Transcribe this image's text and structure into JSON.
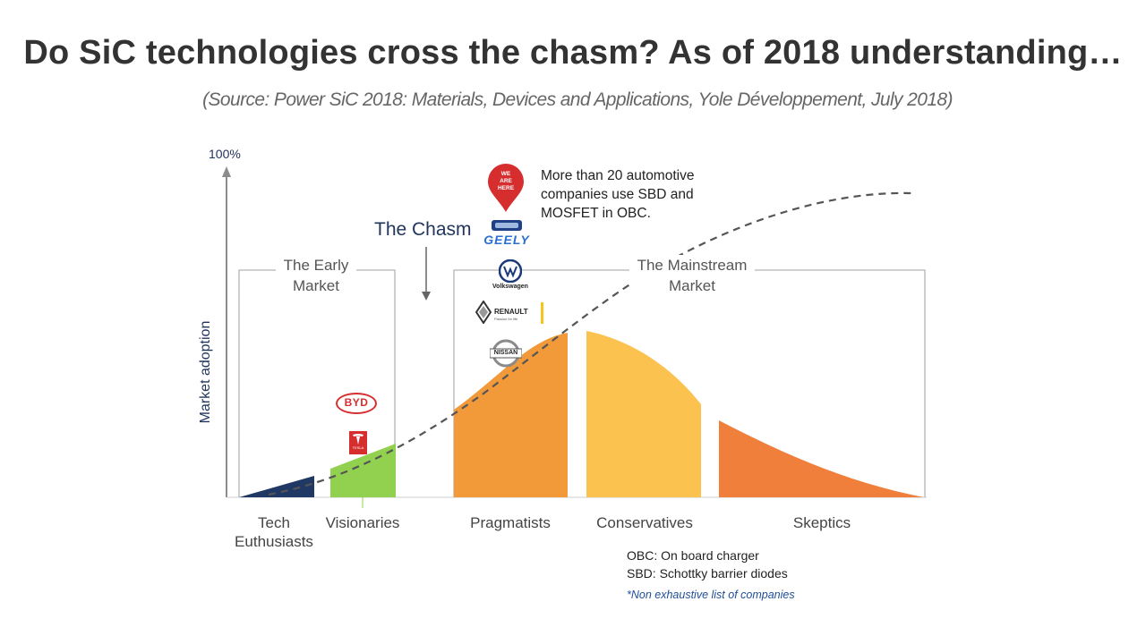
{
  "slide": {
    "title": "Do SiC technologies cross the chasm? As of 2018 understanding…",
    "subtitle": "(Source: Power SiC 2018: Materials, Devices and Applications, Yole Développement, July 2018)"
  },
  "diagram": {
    "y_axis_top_label": "100%",
    "y_axis_label": "Market adoption",
    "chasm_label": "The Chasm",
    "early_market_label": [
      "The Early",
      "Market"
    ],
    "mainstream_market_label": [
      "The Mainstream",
      "Market"
    ],
    "segments": [
      {
        "label_lines": [
          "Tech",
          "Euthusiasts"
        ],
        "color": "#1f3864"
      },
      {
        "label_lines": [
          "Visionaries"
        ],
        "color": "#92d050"
      },
      {
        "label_lines": [
          "Pragmatists"
        ],
        "color": "#f29a3a"
      },
      {
        "label_lines": [
          "Conservatives"
        ],
        "color": "#fbc24f"
      },
      {
        "label_lines": [
          "Skeptics"
        ],
        "color": "#f07f3c"
      }
    ],
    "callout_text": "More than 20 automotive companies use SBD and MOSFET in OBC.",
    "marker_text": [
      "WE",
      "ARE",
      "HERE"
    ],
    "logos": {
      "geely": "GEELY",
      "volkswagen": "Volkswagen",
      "renault": "RENAULT",
      "renault_tagline": "Passion for life",
      "nissan": "NISSAN",
      "byd": "BYD",
      "tesla": "TESLA"
    }
  },
  "legend": {
    "obc": "OBC: On board charger",
    "sbd": "SBD: Schottky barrier diodes",
    "note": "*Non exhaustive list of companies"
  }
}
